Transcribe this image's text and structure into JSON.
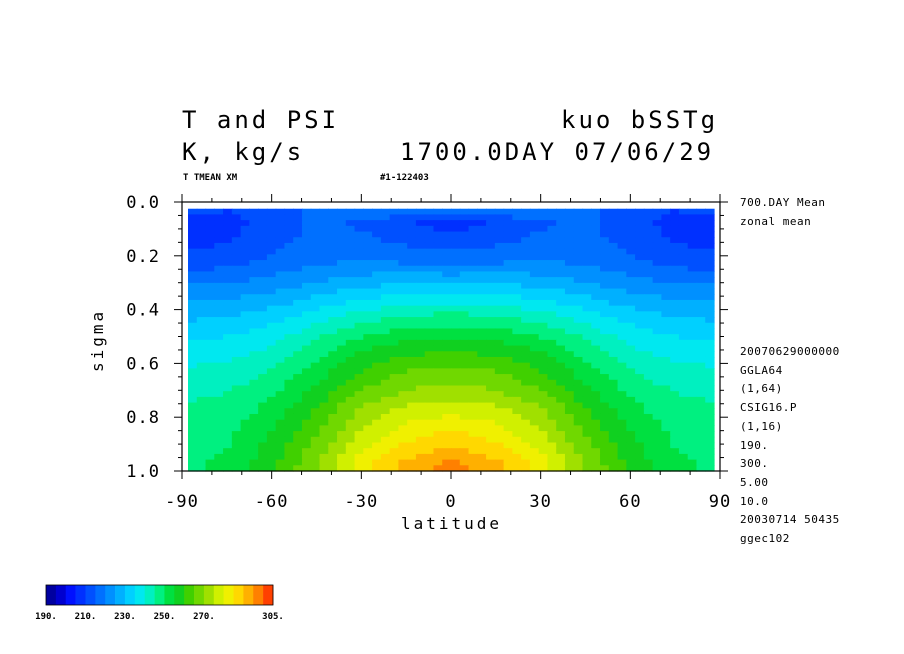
{
  "header": {
    "title_left": "T and PSI",
    "title_right": "kuo bSSTg",
    "units": "K, kg/s",
    "date": "1700.0DAY 07/06/29",
    "var_label": "T TMEAN XM",
    "run_id": "#1-122403"
  },
  "side_info": [
    "700.DAY Mean",
    "zonal mean",
    "20070629000000",
    "GGLA64",
    "(1,64)",
    "CSIG16.P",
    "(1,16)",
    "190.",
    "300.",
    "5.00",
    "10.0",
    "20030714  50435",
    "ggec102"
  ],
  "chart_data": {
    "type": "heatmap",
    "xlabel": "latitude",
    "ylabel": "sigma",
    "xlim": [
      -90,
      90
    ],
    "ylim": [
      1.0,
      0.0
    ],
    "x_ticks": [
      "-90",
      "-60",
      "-30",
      "0",
      "30",
      "60",
      "90"
    ],
    "y_ticks": [
      "0.0",
      "0.2",
      "0.4",
      "0.6",
      "0.8",
      "1.0"
    ],
    "contour_min": 190,
    "contour_max": 300,
    "contour_interval": 5,
    "sigma_levels": [
      0.02,
      0.08,
      0.15,
      0.22,
      0.29,
      0.36,
      0.43,
      0.5,
      0.57,
      0.64,
      0.71,
      0.78,
      0.85,
      0.92,
      0.98
    ],
    "latitudes": [
      -90,
      -75,
      -60,
      -45,
      -30,
      -15,
      0,
      15,
      30,
      45,
      60,
      75,
      90
    ],
    "temperature": [
      [
        215,
        210,
        212,
        216,
        220,
        220,
        220,
        220,
        220,
        216,
        212,
        210,
        215
      ],
      [
        205,
        208,
        212,
        216,
        214,
        210,
        208,
        210,
        214,
        216,
        212,
        208,
        205
      ],
      [
        208,
        210,
        213,
        217,
        217,
        214,
        212,
        214,
        217,
        217,
        213,
        210,
        208
      ],
      [
        212,
        213,
        216,
        219,
        220,
        219,
        218,
        219,
        220,
        219,
        216,
        213,
        212
      ],
      [
        218,
        219,
        221,
        224,
        227,
        228,
        228,
        228,
        227,
        224,
        221,
        219,
        218
      ],
      [
        224,
        225,
        227,
        231,
        235,
        237,
        238,
        237,
        235,
        231,
        227,
        225,
        224
      ],
      [
        229,
        230,
        233,
        238,
        243,
        246,
        247,
        246,
        243,
        238,
        233,
        230,
        229
      ],
      [
        234,
        235,
        238,
        244,
        250,
        253,
        254,
        253,
        250,
        244,
        238,
        235,
        234
      ],
      [
        238,
        239,
        242,
        249,
        256,
        260,
        261,
        260,
        256,
        249,
        242,
        239,
        238
      ],
      [
        241,
        242,
        246,
        253,
        261,
        266,
        267,
        266,
        261,
        253,
        246,
        242,
        241
      ],
      [
        244,
        245,
        249,
        257,
        266,
        271,
        273,
        271,
        266,
        257,
        249,
        245,
        244
      ],
      [
        246,
        247,
        252,
        261,
        271,
        277,
        279,
        277,
        271,
        261,
        252,
        247,
        246
      ],
      [
        247,
        249,
        255,
        264,
        275,
        282,
        285,
        282,
        275,
        264,
        255,
        249,
        247
      ],
      [
        248,
        250,
        257,
        267,
        279,
        287,
        291,
        287,
        279,
        267,
        257,
        250,
        248
      ],
      [
        249,
        251,
        259,
        270,
        283,
        292,
        297,
        292,
        283,
        270,
        259,
        251,
        249
      ]
    ]
  },
  "colorbar": {
    "labels": [
      "190.",
      "210.",
      "230.",
      "250.",
      "270.",
      "305."
    ],
    "label_values": [
      190,
      210,
      230,
      250,
      270,
      305
    ],
    "min": 190,
    "max": 305,
    "colors": [
      "#0000a0",
      "#0000d0",
      "#0010ff",
      "#0030ff",
      "#0050ff",
      "#0070ff",
      "#0090ff",
      "#00b0ff",
      "#00d0ff",
      "#00e8f0",
      "#00f0c0",
      "#00f080",
      "#00e040",
      "#10d020",
      "#40d000",
      "#70d800",
      "#a0e000",
      "#d0f000",
      "#f0f000",
      "#ffd800",
      "#ffb000",
      "#ff8000",
      "#ff4000"
    ]
  }
}
